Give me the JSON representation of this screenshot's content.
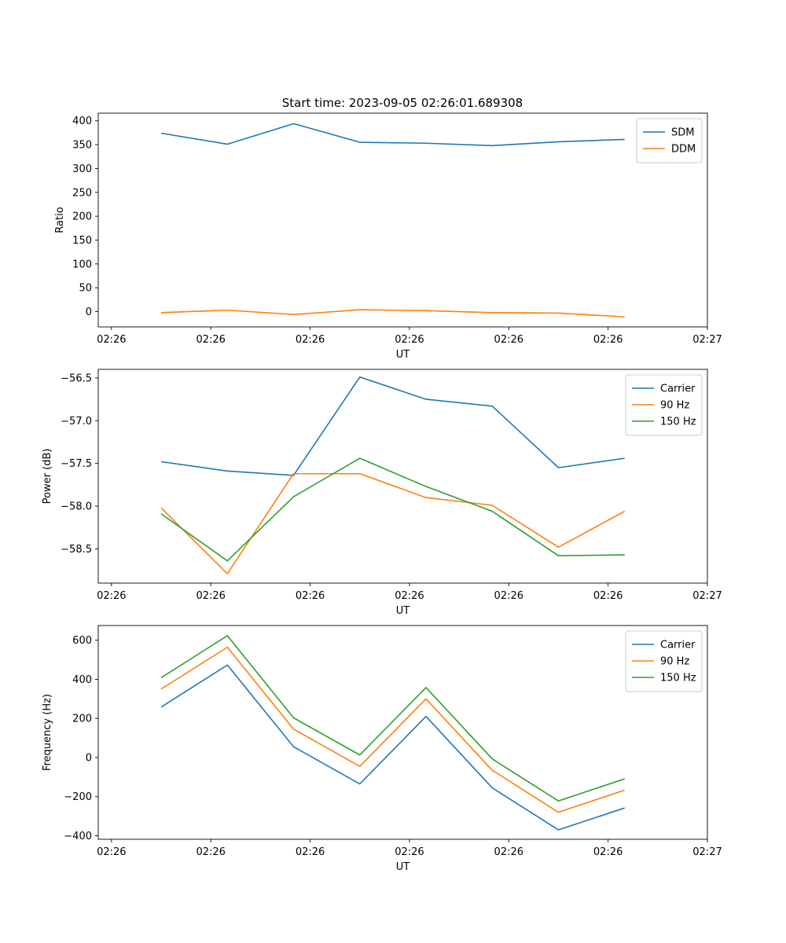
{
  "figure": {
    "title": "Start time: 2023-09-05 02:26:01.689308"
  },
  "colors": {
    "blue": "#1f77b4",
    "orange": "#ff7f0e",
    "green": "#2ca02c"
  },
  "chart_data": [
    {
      "type": "line",
      "title": "Start time: 2023-09-05 02:26:01.689308",
      "xlabel": "UT",
      "ylabel": "Ratio",
      "x_tick_labels": [
        "02:26",
        "02:26",
        "02:26",
        "02:26",
        "02:26",
        "02:26",
        "02:27"
      ],
      "x_tick_positions": [
        -0.5,
        1,
        2.5,
        4,
        5.5,
        7,
        8.5
      ],
      "xlim": [
        -0.7,
        8.5
      ],
      "x": [
        0.25,
        1.25,
        2.25,
        3.25,
        4.25,
        5.25,
        6.25,
        7.25
      ],
      "ylim": [
        -32,
        416
      ],
      "y_ticks": [
        0,
        50,
        100,
        150,
        200,
        250,
        300,
        350,
        400
      ],
      "legend": "top-right",
      "series": [
        {
          "name": "SDM",
          "color_key": "blue",
          "values": [
            374,
            351,
            394,
            355,
            353,
            348,
            356,
            361
          ]
        },
        {
          "name": "DDM",
          "color_key": "orange",
          "values": [
            -2,
            3,
            -6,
            4,
            2,
            -2,
            -3,
            -11
          ]
        }
      ]
    },
    {
      "type": "line",
      "title": "",
      "xlabel": "UT",
      "ylabel": "Power (dB)",
      "x_tick_labels": [
        "02:26",
        "02:26",
        "02:26",
        "02:26",
        "02:26",
        "02:26",
        "02:27"
      ],
      "x_tick_positions": [
        -0.5,
        1,
        2.5,
        4,
        5.5,
        7,
        8.5
      ],
      "xlim": [
        -0.7,
        8.5
      ],
      "x": [
        0.25,
        1.25,
        2.25,
        3.25,
        4.25,
        5.25,
        6.25,
        7.25
      ],
      "ylim": [
        -58.9,
        -56.4
      ],
      "y_ticks": [
        -58.5,
        -58.0,
        -57.5,
        -57.0,
        -56.5
      ],
      "y_tick_labels": [
        "−58.5",
        "−58.0",
        "−57.5",
        "−57.0",
        "−56.5"
      ],
      "legend": "top-right",
      "series": [
        {
          "name": "Carrier",
          "color_key": "blue",
          "values": [
            -57.48,
            -57.59,
            -57.64,
            -56.49,
            -56.75,
            -56.83,
            -57.55,
            -57.44
          ]
        },
        {
          "name": "90 Hz",
          "color_key": "orange",
          "values": [
            -58.02,
            -58.79,
            -57.62,
            -57.62,
            -57.9,
            -57.99,
            -58.48,
            -58.06
          ]
        },
        {
          "name": "150 Hz",
          "color_key": "green",
          "values": [
            -58.09,
            -58.64,
            -57.89,
            -57.44,
            -57.77,
            -58.06,
            -58.58,
            -58.57
          ]
        }
      ]
    },
    {
      "type": "line",
      "title": "",
      "xlabel": "UT",
      "ylabel": "Frequency (Hz)",
      "x_tick_labels": [
        "02:26",
        "02:26",
        "02:26",
        "02:26",
        "02:26",
        "02:26",
        "02:27"
      ],
      "x_tick_positions": [
        -0.5,
        1,
        2.5,
        4,
        5.5,
        7,
        8.5
      ],
      "xlim": [
        -0.7,
        8.5
      ],
      "x": [
        0.25,
        1.25,
        2.25,
        3.25,
        4.25,
        5.25,
        6.25,
        7.25
      ],
      "ylim": [
        -418,
        675
      ],
      "y_ticks": [
        -400,
        -200,
        0,
        200,
        400,
        600
      ],
      "y_tick_labels": [
        "−400",
        "−200",
        "0",
        "200",
        "400",
        "600"
      ],
      "legend": "top-right",
      "series": [
        {
          "name": "Carrier",
          "color_key": "blue",
          "values": [
            258,
            473,
            55,
            -135,
            210,
            -155,
            -370,
            -258
          ]
        },
        {
          "name": "90 Hz",
          "color_key": "orange",
          "values": [
            350,
            564,
            145,
            -45,
            300,
            -65,
            -280,
            -167
          ]
        },
        {
          "name": "150 Hz",
          "color_key": "green",
          "values": [
            408,
            623,
            203,
            13,
            358,
            -7,
            -222,
            -109
          ]
        }
      ]
    }
  ]
}
